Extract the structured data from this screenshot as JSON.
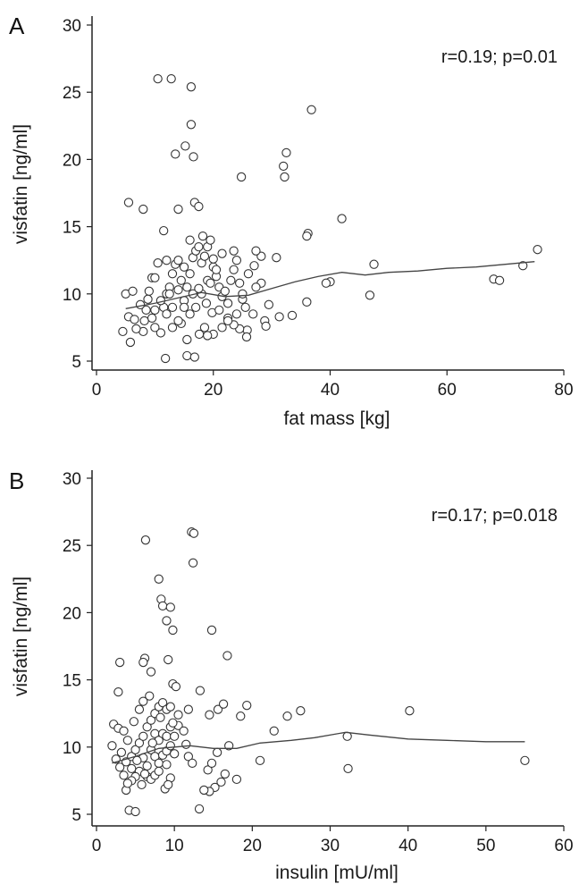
{
  "chart_data": [
    {
      "type": "scatter",
      "panel_label": "A",
      "xlabel": "fat mass [kg]",
      "ylabel": "visfatin [ng/ml]",
      "annotation": "r=0.19; p=0.01",
      "xlim": [
        0,
        80
      ],
      "ylim": [
        5,
        30
      ],
      "xticks": [
        0,
        20,
        40,
        60,
        80
      ],
      "yticks": [
        5,
        10,
        15,
        20,
        25,
        30
      ],
      "points": [
        [
          10.5,
          26.0
        ],
        [
          12.8,
          26.0
        ],
        [
          16.2,
          25.4
        ],
        [
          16.2,
          22.6
        ],
        [
          15.2,
          21.0
        ],
        [
          13.5,
          20.4
        ],
        [
          16.6,
          20.2
        ],
        [
          36.8,
          23.7
        ],
        [
          32.5,
          20.5
        ],
        [
          32.0,
          19.5
        ],
        [
          32.2,
          18.7
        ],
        [
          24.8,
          18.7
        ],
        [
          5.5,
          16.8
        ],
        [
          8.0,
          16.3
        ],
        [
          11.5,
          14.7
        ],
        [
          14.0,
          16.3
        ],
        [
          16.8,
          16.8
        ],
        [
          17.5,
          16.5
        ],
        [
          36.2,
          14.5
        ],
        [
          36.0,
          14.3
        ],
        [
          42.0,
          15.6
        ],
        [
          47.5,
          12.2
        ],
        [
          46.8,
          9.9
        ],
        [
          40.0,
          10.9
        ],
        [
          39.3,
          10.8
        ],
        [
          36.0,
          9.4
        ],
        [
          33.5,
          8.4
        ],
        [
          31.3,
          8.3
        ],
        [
          30.8,
          12.7
        ],
        [
          28.2,
          12.8
        ],
        [
          27.3,
          13.2
        ],
        [
          27.0,
          12.1
        ],
        [
          28.2,
          10.8
        ],
        [
          27.3,
          10.5
        ],
        [
          29.5,
          9.2
        ],
        [
          28.8,
          8.0
        ],
        [
          29.0,
          7.6
        ],
        [
          26.8,
          8.5
        ],
        [
          25.8,
          7.3
        ],
        [
          25.7,
          6.8
        ],
        [
          24.5,
          7.4
        ],
        [
          23.5,
          7.7
        ],
        [
          22.5,
          8.2
        ],
        [
          21.5,
          7.5
        ],
        [
          20.0,
          7.0
        ],
        [
          19.0,
          6.9
        ],
        [
          18.5,
          7.5
        ],
        [
          17.6,
          7.0
        ],
        [
          15.5,
          6.6
        ],
        [
          14.5,
          7.8
        ],
        [
          13.0,
          7.5
        ],
        [
          11.0,
          7.1
        ],
        [
          10.0,
          7.5
        ],
        [
          8.0,
          7.2
        ],
        [
          6.8,
          7.4
        ],
        [
          5.8,
          6.4
        ],
        [
          4.5,
          7.2
        ],
        [
          5.5,
          8.3
        ],
        [
          6.5,
          8.1
        ],
        [
          5.0,
          10.0
        ],
        [
          6.2,
          10.2
        ],
        [
          8.2,
          8.0
        ],
        [
          8.5,
          8.8
        ],
        [
          9.0,
          10.2
        ],
        [
          9.5,
          11.2
        ],
        [
          10.5,
          12.3
        ],
        [
          11.5,
          9.0
        ],
        [
          12.0,
          10.0
        ],
        [
          12.5,
          10.5
        ],
        [
          13.0,
          11.5
        ],
        [
          13.5,
          12.2
        ],
        [
          14.0,
          12.5
        ],
        [
          14.5,
          11.0
        ],
        [
          15.0,
          12.0
        ],
        [
          15.5,
          10.5
        ],
        [
          16.0,
          11.5
        ],
        [
          16.5,
          12.7
        ],
        [
          17.0,
          13.2
        ],
        [
          17.5,
          13.5
        ],
        [
          18.0,
          12.3
        ],
        [
          18.5,
          12.8
        ],
        [
          19.0,
          13.5
        ],
        [
          19.5,
          14.0
        ],
        [
          18.2,
          14.3
        ],
        [
          20.0,
          12.0
        ],
        [
          20.5,
          11.3
        ],
        [
          21.0,
          10.5
        ],
        [
          21.5,
          9.8
        ],
        [
          22.0,
          10.2
        ],
        [
          22.5,
          9.3
        ],
        [
          23.0,
          11.0
        ],
        [
          23.5,
          11.8
        ],
        [
          24.0,
          12.5
        ],
        [
          24.5,
          10.8
        ],
        [
          25.0,
          9.6
        ],
        [
          25.5,
          9.0
        ],
        [
          26.0,
          11.5
        ],
        [
          23.5,
          13.2
        ],
        [
          20.0,
          12.6
        ],
        [
          19.0,
          11.0
        ],
        [
          18.0,
          10.0
        ],
        [
          17.0,
          9.0
        ],
        [
          16.0,
          8.5
        ],
        [
          15.0,
          9.5
        ],
        [
          14.0,
          8.0
        ],
        [
          13.0,
          9.0
        ],
        [
          12.0,
          8.5
        ],
        [
          11.0,
          9.5
        ],
        [
          10.0,
          8.8
        ],
        [
          9.5,
          8.2
        ],
        [
          7.5,
          9.2
        ],
        [
          8.8,
          9.6
        ],
        [
          12.5,
          10.0
        ],
        [
          14.0,
          10.3
        ],
        [
          16.5,
          10.0
        ],
        [
          17.5,
          10.4
        ],
        [
          18.8,
          9.3
        ],
        [
          19.8,
          8.6
        ],
        [
          21.0,
          8.8
        ],
        [
          22.5,
          8.0
        ],
        [
          24.0,
          8.5
        ],
        [
          25.0,
          10.0
        ],
        [
          20.5,
          11.8
        ],
        [
          12.0,
          12.5
        ],
        [
          16.0,
          14.0
        ],
        [
          10.0,
          11.2
        ],
        [
          11.8,
          5.2
        ],
        [
          15.5,
          5.4
        ],
        [
          16.8,
          5.3
        ],
        [
          68.0,
          11.1
        ],
        [
          69.0,
          11.0
        ],
        [
          73.0,
          12.1
        ],
        [
          75.5,
          13.3
        ],
        [
          21.5,
          13.0
        ],
        [
          15.0,
          9.0
        ],
        [
          19.5,
          10.8
        ]
      ],
      "fit_line": {
        "x": [
          5,
          10,
          14,
          18,
          22,
          26,
          30,
          34,
          38,
          42,
          46,
          50,
          55,
          60,
          65,
          70,
          75
        ],
        "y": [
          8.9,
          9.3,
          9.7,
          10.1,
          9.8,
          9.9,
          10.4,
          10.9,
          11.3,
          11.6,
          11.4,
          11.6,
          11.7,
          11.9,
          12.0,
          12.2,
          12.4
        ]
      }
    },
    {
      "type": "scatter",
      "panel_label": "B",
      "xlabel": "insulin [mU/ml]",
      "ylabel": "visfatin [ng/ml]",
      "annotation": "r=0.17; p=0.018",
      "xlim": [
        0,
        60
      ],
      "ylim": [
        5,
        30
      ],
      "xticks": [
        0,
        10,
        20,
        30,
        40,
        50,
        60
      ],
      "yticks": [
        5,
        10,
        15,
        20,
        25,
        30
      ],
      "points": [
        [
          12.2,
          26.0
        ],
        [
          12.5,
          25.9
        ],
        [
          6.3,
          25.4
        ],
        [
          12.4,
          23.7
        ],
        [
          8.0,
          22.5
        ],
        [
          8.3,
          21.0
        ],
        [
          8.5,
          20.5
        ],
        [
          9.5,
          20.4
        ],
        [
          9.0,
          19.4
        ],
        [
          9.8,
          18.7
        ],
        [
          14.8,
          18.7
        ],
        [
          6.2,
          16.6
        ],
        [
          6.0,
          16.3
        ],
        [
          9.2,
          16.5
        ],
        [
          3.0,
          16.3
        ],
        [
          16.8,
          16.8
        ],
        [
          7.0,
          15.6
        ],
        [
          2.8,
          14.1
        ],
        [
          9.8,
          14.7
        ],
        [
          10.2,
          14.5
        ],
        [
          13.3,
          14.2
        ],
        [
          40.2,
          12.7
        ],
        [
          26.2,
          12.7
        ],
        [
          24.5,
          12.3
        ],
        [
          19.3,
          13.1
        ],
        [
          18.5,
          12.3
        ],
        [
          15.6,
          12.8
        ],
        [
          16.3,
          13.2
        ],
        [
          14.5,
          12.4
        ],
        [
          11.8,
          12.8
        ],
        [
          10.5,
          11.6
        ],
        [
          11.2,
          11.2
        ],
        [
          22.8,
          11.2
        ],
        [
          32.2,
          10.8
        ],
        [
          17.0,
          10.1
        ],
        [
          15.5,
          9.6
        ],
        [
          21.0,
          9.0
        ],
        [
          55.0,
          9.0
        ],
        [
          32.3,
          8.4
        ],
        [
          18.0,
          7.6
        ],
        [
          16.0,
          7.4
        ],
        [
          15.2,
          7.0
        ],
        [
          14.5,
          6.7
        ],
        [
          13.8,
          6.8
        ],
        [
          14.3,
          8.3
        ],
        [
          14.8,
          8.8
        ],
        [
          16.5,
          8.0
        ],
        [
          11.8,
          9.3
        ],
        [
          12.3,
          8.8
        ],
        [
          2.0,
          10.1
        ],
        [
          2.2,
          11.7
        ],
        [
          2.8,
          11.4
        ],
        [
          3.5,
          11.2
        ],
        [
          4.0,
          10.5
        ],
        [
          2.5,
          9.1
        ],
        [
          3.0,
          8.5
        ],
        [
          3.8,
          8.9
        ],
        [
          4.5,
          8.4
        ],
        [
          4.5,
          9.3
        ],
        [
          5.0,
          9.8
        ],
        [
          5.5,
          10.3
        ],
        [
          6.0,
          10.8
        ],
        [
          6.5,
          11.5
        ],
        [
          7.0,
          12.0
        ],
        [
          7.5,
          12.5
        ],
        [
          8.0,
          13.0
        ],
        [
          8.5,
          13.3
        ],
        [
          9.0,
          12.8
        ],
        [
          9.5,
          13.0
        ],
        [
          5.5,
          12.8
        ],
        [
          6.0,
          13.4
        ],
        [
          6.8,
          13.8
        ],
        [
          7.5,
          11.0
        ],
        [
          8.0,
          10.5
        ],
        [
          8.5,
          11.0
        ],
        [
          9.0,
          10.8
        ],
        [
          9.5,
          11.5
        ],
        [
          10.0,
          10.8
        ],
        [
          7.0,
          9.8
        ],
        [
          7.5,
          9.3
        ],
        [
          8.0,
          8.8
        ],
        [
          8.5,
          9.4
        ],
        [
          9.0,
          9.7
        ],
        [
          9.5,
          10.1
        ],
        [
          10.0,
          9.5
        ],
        [
          6.0,
          9.2
        ],
        [
          6.5,
          8.6
        ],
        [
          5.5,
          8.2
        ],
        [
          5.0,
          7.8
        ],
        [
          4.5,
          7.5
        ],
        [
          5.8,
          7.2
        ],
        [
          6.5,
          7.8
        ],
        [
          7.0,
          7.6
        ],
        [
          7.5,
          7.9
        ],
        [
          8.0,
          8.2
        ],
        [
          9.0,
          8.7
        ],
        [
          9.5,
          7.7
        ],
        [
          8.8,
          6.9
        ],
        [
          9.2,
          7.2
        ],
        [
          3.8,
          6.8
        ],
        [
          4.0,
          7.3
        ],
        [
          3.5,
          7.9
        ],
        [
          4.2,
          5.3
        ],
        [
          5.0,
          5.2
        ],
        [
          13.2,
          5.4
        ],
        [
          5.2,
          9.0
        ],
        [
          6.2,
          8.0
        ],
        [
          7.2,
          10.3
        ],
        [
          8.2,
          12.2
        ],
        [
          9.8,
          11.8
        ],
        [
          10.5,
          12.4
        ],
        [
          3.2,
          9.6
        ],
        [
          11.5,
          10.2
        ],
        [
          4.8,
          11.9
        ]
      ],
      "fit_line": {
        "x": [
          2,
          5,
          8,
          12,
          15,
          18,
          21,
          25,
          28,
          32,
          35,
          40,
          45,
          50,
          55
        ],
        "y": [
          8.8,
          9.3,
          9.9,
          10.1,
          9.9,
          9.9,
          10.3,
          10.5,
          10.7,
          11.1,
          10.9,
          10.6,
          10.5,
          10.4,
          10.4
        ]
      }
    }
  ]
}
